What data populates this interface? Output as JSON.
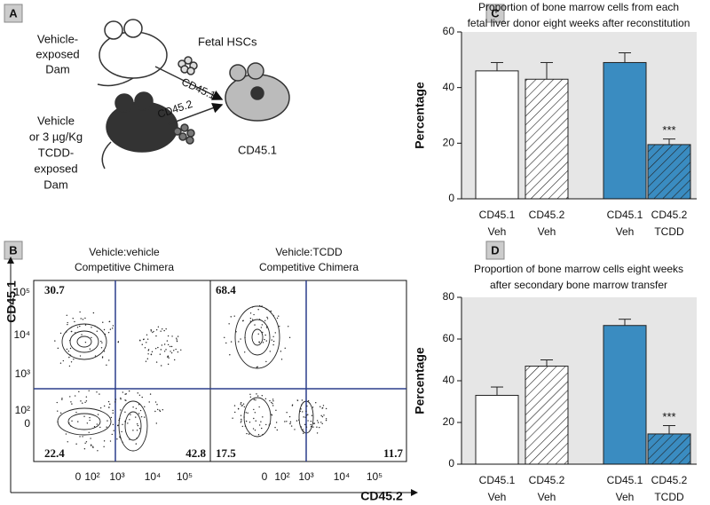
{
  "panels": [
    "A",
    "B",
    "C",
    "D"
  ],
  "diagram": {
    "donor1": [
      "Vehicle-",
      "exposed",
      "Dam"
    ],
    "cells": "Fetal HSCs",
    "arrow1": "CD45.1",
    "arrow2": "CD45.2",
    "donor2": [
      "Vehicle",
      "or 3 µg/Kg",
      "TCDD-",
      "exposed",
      "Dam"
    ],
    "recipient": "CD45.1"
  },
  "flow": {
    "y_label": "CD45.1",
    "x_label": "CD45.2",
    "y_ticks": [
      "10⁵",
      "10⁴",
      "10³",
      "10²",
      "0"
    ],
    "x_ticks": [
      "0",
      "10²",
      "10³",
      "10⁴",
      "10⁵"
    ],
    "plots": [
      {
        "title": [
          "Vehicle:vehicle",
          "Competitive Chimera"
        ],
        "quadrants": [
          30.7,
          22.4,
          42.8
        ]
      },
      {
        "title": [
          "Vehicle:TCDD",
          "Competitive Chimera"
        ],
        "quadrants": [
          68.4,
          17.5,
          11.7
        ]
      }
    ]
  },
  "chart_data": [
    {
      "type": "bar",
      "title": [
        "Proportion of bone marrow cells from each",
        "fetal liver donor eight weeks after reconstitution"
      ],
      "y_label": "Percentage",
      "categories": [
        [
          "CD45.1",
          "Veh"
        ],
        [
          "CD45.2",
          "Veh"
        ],
        [
          "CD45.1",
          "Veh"
        ],
        [
          "CD45.2",
          "TCDD"
        ]
      ],
      "values": [
        46,
        43,
        49,
        19.5
      ],
      "errors": [
        3,
        6,
        3.5,
        2
      ],
      "colors": [
        "#ffffff",
        "#ffffff",
        "#3a8cc1",
        "#3a8cc1"
      ],
      "hatch": [
        false,
        true,
        false,
        true
      ],
      "annotations": [
        null,
        null,
        null,
        "***"
      ],
      "ylim": [
        0,
        60
      ],
      "yticks": [
        0,
        20,
        40,
        60
      ],
      "grid": false
    },
    {
      "type": "bar",
      "title": [
        "Proportion of bone marrow cells eight weeks",
        "after secondary bone marrow transfer"
      ],
      "y_label": "Percentage",
      "categories": [
        [
          "CD45.1",
          "Veh"
        ],
        [
          "CD45.2",
          "Veh"
        ],
        [
          "CD45.1",
          "Veh"
        ],
        [
          "CD45.2",
          "TCDD"
        ]
      ],
      "values": [
        33,
        47,
        66.5,
        14.5
      ],
      "errors": [
        4,
        3,
        3,
        4
      ],
      "colors": [
        "#ffffff",
        "#ffffff",
        "#3a8cc1",
        "#3a8cc1"
      ],
      "hatch": [
        false,
        true,
        false,
        true
      ],
      "annotations": [
        null,
        null,
        null,
        "***"
      ],
      "ylim": [
        0,
        80
      ],
      "yticks": [
        0,
        20,
        40,
        60,
        80
      ],
      "grid": false
    }
  ]
}
